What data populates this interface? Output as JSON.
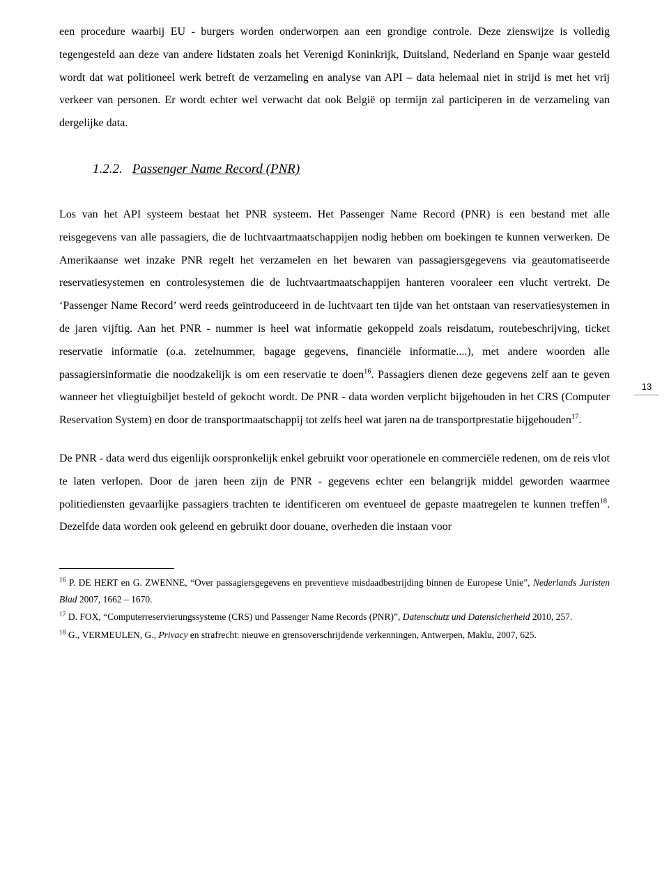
{
  "page": {
    "number": "13"
  },
  "content": {
    "para0": "een procedure waarbij EU - burgers worden onderworpen aan een grondige controle. Deze zienswijze is volledig tegengesteld aan deze van andere lidstaten zoals het Verenigd Koninkrijk, Duitsland, Nederland en Spanje waar gesteld wordt dat wat politioneel werk betreft de verzameling en analyse van API – data helemaal niet in strijd is met het vrij verkeer van personen. Er wordt echter wel verwacht dat ook België op termijn zal participeren in de verzameling van dergelijke data.",
    "heading_num": "1.2.2.",
    "heading_label": "Passenger Name Record (PNR)",
    "para1_pre": "Los van het API systeem bestaat het PNR systeem. Het Passenger Name Record (PNR) is een bestand met alle reisgegevens van alle passagiers, die de luchtvaartmaatschappijen nodig hebben om boekingen te kunnen verwerken. De Amerikaanse wet inzake PNR regelt het verzamelen en het bewaren van  passagiersgegevens via geautomatiseerde reservatiesystemen en controlesystemen die de luchtvaartmaatschappijen hanteren vooraleer een vlucht vertrekt. De ‘Passenger Name Record’ werd reeds geïntroduceerd in de luchtvaart ten tijde van het ontstaan van reservatiesystemen in de jaren vijftig. Aan het PNR - nummer is heel wat informatie gekoppeld zoals reisdatum, routebeschrijving, ticket reservatie informatie (o.a. zetelnummer, bagage gegevens, financiële informatie....), met andere woorden alle passagiersinformatie die noodzakelijk is om een reservatie te doen",
    "para1_ref1": "16",
    "para1_mid": ". Passagiers dienen deze gegevens zelf aan te geven wanneer het vliegtuigbiljet besteld of gekocht wordt. De PNR - data worden verplicht bijgehouden in het CRS (Computer Reservation System) en door de transportmaatschappij tot zelfs heel wat jaren na de transportprestatie bijgehouden",
    "para1_ref2": "17",
    "para1_post": ".",
    "para2_pre": "De PNR - data werd dus eigenlijk oorspronkelijk enkel gebruikt voor operationele en commerciële redenen, om de reis vlot te laten verlopen. Door de jaren heen zijn de PNR - gegevens echter een belangrijk middel geworden waarmee politiediensten gevaarlijke passagiers trachten te identificeren om eventueel de gepaste maatregelen te kunnen treffen",
    "para2_ref": "18",
    "para2_post": ". Dezelfde data worden ook geleend en gebruikt door douane, overheden die instaan voor"
  },
  "footnotes": {
    "fn16_num": "16",
    "fn16_a": " P. DE HERT en G. ZWENNE, “Over passagiersgegevens en preventieve misdaadbestrijding binnen de Europese Unie”, ",
    "fn16_i": "Nederlands Juristen Blad",
    "fn16_b": " 2007, 1662 – 1670.",
    "fn17_num": "17",
    "fn17_a": " D. FOX, “Computerreservierungssysteme (CRS) und Passenger Name Records (PNR)”, ",
    "fn17_i": "Datenschutz und Datensicherheid",
    "fn17_b": " 2010, 257.",
    "fn18_num": "18",
    "fn18_a": " G., VERMEULEN, G., ",
    "fn18_i": "Privacy",
    "fn18_b": " en strafrecht: nieuwe en grensoverschrijdende verkenningen, Antwerpen, Maklu, 2007, 625."
  }
}
